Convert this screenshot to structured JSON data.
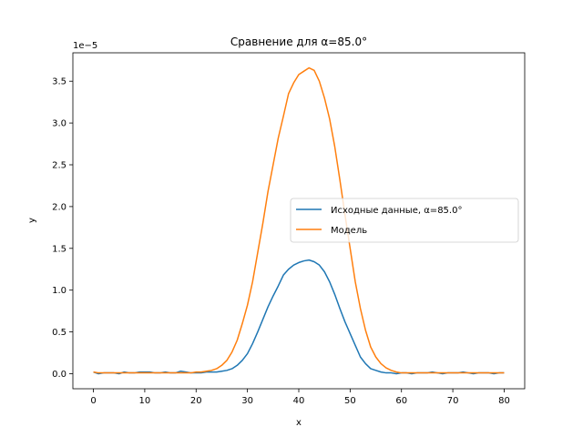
{
  "chart_data": {
    "type": "line",
    "title": "Сравнение для α=85.0°",
    "xlabel": "x",
    "ylabel": "y",
    "offset_text": "1e−5",
    "xlim": [
      -4,
      84
    ],
    "ylim": [
      -0.18,
      3.84
    ],
    "y_scale_note_value": 1e-05,
    "xticks": [
      0,
      10,
      20,
      30,
      40,
      50,
      60,
      70,
      80
    ],
    "yticks": [
      0.0,
      0.5,
      1.0,
      1.5,
      2.0,
      2.5,
      3.0,
      3.5
    ],
    "ytick_labels": [
      "0.0",
      "0.5",
      "1.0",
      "1.5",
      "2.0",
      "2.5",
      "3.0",
      "3.5"
    ],
    "grid": false,
    "legend_position": "center-right",
    "series": [
      {
        "name": "Исходные данные, α=85.0°",
        "color": "#1f77b4",
        "x": [
          0,
          1,
          2,
          3,
          4,
          5,
          6,
          7,
          8,
          9,
          10,
          11,
          12,
          13,
          14,
          15,
          16,
          17,
          18,
          19,
          20,
          21,
          22,
          23,
          24,
          25,
          26,
          27,
          28,
          29,
          30,
          31,
          32,
          33,
          34,
          35,
          36,
          37,
          38,
          39,
          40,
          41,
          42,
          43,
          44,
          45,
          46,
          47,
          48,
          49,
          50,
          51,
          52,
          53,
          54,
          55,
          56,
          57,
          58,
          59,
          60,
          61,
          62,
          63,
          64,
          65,
          66,
          67,
          68,
          69,
          70,
          71,
          72,
          73,
          74,
          75,
          76,
          77,
          78,
          79,
          80
        ],
        "y": [
          0.02,
          0.0,
          0.01,
          0.01,
          0.01,
          0.0,
          0.02,
          0.01,
          0.01,
          0.02,
          0.02,
          0.02,
          0.01,
          0.01,
          0.02,
          0.01,
          0.01,
          0.03,
          0.02,
          0.01,
          0.01,
          0.01,
          0.02,
          0.02,
          0.02,
          0.03,
          0.04,
          0.06,
          0.1,
          0.16,
          0.24,
          0.36,
          0.5,
          0.65,
          0.8,
          0.93,
          1.05,
          1.18,
          1.25,
          1.3,
          1.33,
          1.35,
          1.36,
          1.34,
          1.3,
          1.22,
          1.1,
          0.95,
          0.78,
          0.62,
          0.48,
          0.34,
          0.2,
          0.12,
          0.06,
          0.04,
          0.02,
          0.01,
          0.01,
          0.0,
          0.01,
          0.01,
          0.0,
          0.01,
          0.01,
          0.01,
          0.02,
          0.01,
          0.0,
          0.01,
          0.01,
          0.01,
          0.02,
          0.01,
          0.0,
          0.01,
          0.01,
          0.01,
          0.0,
          0.01,
          0.01
        ]
      },
      {
        "name": "Модель",
        "color": "#ff7f0e",
        "x": [
          0,
          1,
          2,
          3,
          4,
          5,
          6,
          7,
          8,
          9,
          10,
          11,
          12,
          13,
          14,
          15,
          16,
          17,
          18,
          19,
          20,
          21,
          22,
          23,
          24,
          25,
          26,
          27,
          28,
          29,
          30,
          31,
          32,
          33,
          34,
          35,
          36,
          37,
          38,
          39,
          40,
          41,
          42,
          43,
          44,
          45,
          46,
          47,
          48,
          49,
          50,
          51,
          52,
          53,
          54,
          55,
          56,
          57,
          58,
          59,
          60,
          61,
          62,
          63,
          64,
          65,
          66,
          67,
          68,
          69,
          70,
          71,
          72,
          73,
          74,
          75,
          76,
          77,
          78,
          79,
          80
        ],
        "y": [
          0.02,
          0.01,
          0.01,
          0.01,
          0.01,
          0.01,
          0.01,
          0.01,
          0.01,
          0.01,
          0.01,
          0.01,
          0.01,
          0.01,
          0.01,
          0.01,
          0.01,
          0.01,
          0.01,
          0.01,
          0.02,
          0.02,
          0.03,
          0.04,
          0.06,
          0.1,
          0.16,
          0.26,
          0.4,
          0.6,
          0.82,
          1.1,
          1.45,
          1.8,
          2.18,
          2.5,
          2.82,
          3.08,
          3.35,
          3.48,
          3.58,
          3.62,
          3.66,
          3.63,
          3.5,
          3.3,
          3.05,
          2.72,
          2.32,
          1.9,
          1.5,
          1.1,
          0.78,
          0.52,
          0.32,
          0.2,
          0.12,
          0.07,
          0.04,
          0.02,
          0.01,
          0.01,
          0.01,
          0.01,
          0.01,
          0.01,
          0.01,
          0.01,
          0.01,
          0.01,
          0.01,
          0.01,
          0.01,
          0.01,
          0.01,
          0.01,
          0.01,
          0.01,
          0.01,
          0.01,
          0.01
        ]
      }
    ]
  }
}
